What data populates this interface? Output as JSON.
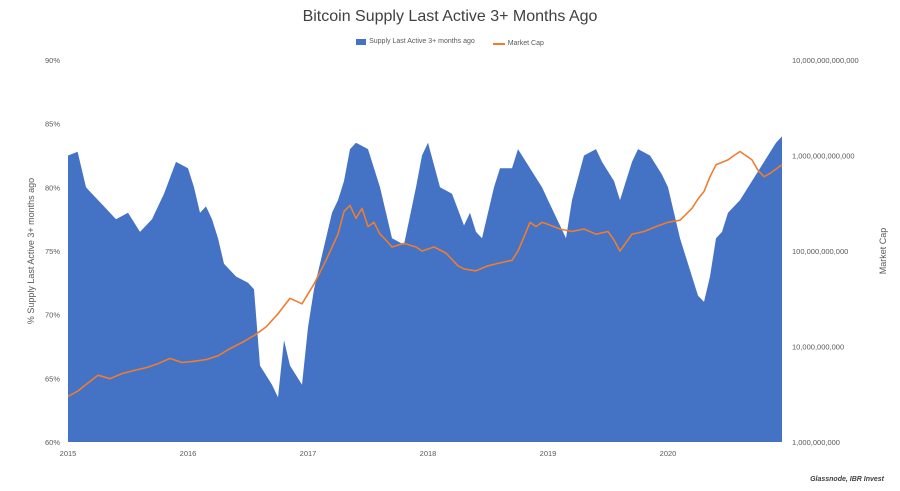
{
  "chart_data": {
    "type": "area",
    "title": "Bitcoin Supply Last Active 3+ Months Ago",
    "ylabel_left": "% Supply Last Active 3+ months ago",
    "ylabel_right": "Market Cap",
    "x_ticks": [
      "2015",
      "2016",
      "2017",
      "2018",
      "2019",
      "2020"
    ],
    "y_left_ticks": [
      "90%",
      "85%",
      "80%",
      "75%",
      "70%",
      "65%",
      "60%"
    ],
    "y_left_range": [
      60,
      90
    ],
    "y_right_ticks": [
      "10,000,000,000,000",
      "1,000,000,000,000",
      "100,000,000,000",
      "10,000,000,000",
      "1,000,000,000"
    ],
    "y_right_range": [
      1000000000,
      10000000000000
    ],
    "y_right_scale": "log",
    "x_range": [
      2015.0,
      2020.95
    ],
    "series": [
      {
        "name": "Supply Last Active 3+ months ago",
        "color": "#4472c4",
        "axis": "left",
        "x": [
          2015.0,
          2015.08,
          2015.15,
          2015.2,
          2015.3,
          2015.4,
          2015.5,
          2015.6,
          2015.7,
          2015.8,
          2015.9,
          2016.0,
          2016.05,
          2016.1,
          2016.15,
          2016.2,
          2016.25,
          2016.3,
          2016.4,
          2016.5,
          2016.55,
          2016.6,
          2016.7,
          2016.75,
          2016.8,
          2016.85,
          2016.95,
          2017.0,
          2017.05,
          2017.1,
          2017.15,
          2017.2,
          2017.25,
          2017.3,
          2017.35,
          2017.4,
          2017.5,
          2017.6,
          2017.7,
          2017.8,
          2017.9,
          2017.95,
          2018.0,
          2018.1,
          2018.2,
          2018.3,
          2018.35,
          2018.4,
          2018.45,
          2018.55,
          2018.6,
          2018.7,
          2018.75,
          2018.85,
          2018.95,
          2019.0,
          2019.1,
          2019.15,
          2019.2,
          2019.3,
          2019.4,
          2019.45,
          2019.55,
          2019.6,
          2019.7,
          2019.75,
          2019.85,
          2019.95,
          2020.0,
          2020.1,
          2020.2,
          2020.25,
          2020.3,
          2020.35,
          2020.4,
          2020.45,
          2020.5,
          2020.6,
          2020.7,
          2020.8,
          2020.9,
          2020.95
        ],
        "values": [
          82.5,
          82.8,
          80,
          79.5,
          78.5,
          77.5,
          78,
          76.5,
          77.5,
          79.5,
          82,
          81.5,
          80,
          78,
          78.5,
          77.5,
          76,
          74,
          73,
          72.5,
          72,
          66,
          64.5,
          63.5,
          68,
          66,
          64.5,
          69,
          72,
          74,
          76,
          78,
          79,
          80.5,
          83,
          83.5,
          83,
          80,
          76,
          75.5,
          80,
          82.5,
          83.5,
          80,
          79.5,
          77,
          78,
          76.5,
          76,
          80,
          81.5,
          81.5,
          83,
          81.5,
          80,
          79,
          77,
          76,
          79,
          82.5,
          83,
          82,
          80.5,
          79,
          82,
          83,
          82.5,
          81,
          80,
          76,
          73,
          71.5,
          71,
          73,
          76,
          76.5,
          78,
          79,
          80.5,
          82,
          83.5,
          84
        ]
      },
      {
        "name": "Market Cap",
        "color": "#ed7d31",
        "axis": "right",
        "x": [
          2015.0,
          2015.08,
          2015.15,
          2015.25,
          2015.35,
          2015.45,
          2015.55,
          2015.65,
          2015.75,
          2015.85,
          2015.95,
          2016.05,
          2016.15,
          2016.25,
          2016.35,
          2016.45,
          2016.55,
          2016.65,
          2016.75,
          2016.85,
          2016.95,
          2017.05,
          2017.15,
          2017.25,
          2017.3,
          2017.35,
          2017.4,
          2017.45,
          2017.5,
          2017.55,
          2017.6,
          2017.65,
          2017.7,
          2017.8,
          2017.9,
          2017.95,
          2018.05,
          2018.15,
          2018.25,
          2018.3,
          2018.4,
          2018.5,
          2018.6,
          2018.7,
          2018.75,
          2018.8,
          2018.85,
          2018.9,
          2018.95,
          2019.0,
          2019.1,
          2019.2,
          2019.3,
          2019.4,
          2019.5,
          2019.55,
          2019.6,
          2019.7,
          2019.8,
          2019.9,
          2020.0,
          2020.1,
          2020.2,
          2020.25,
          2020.3,
          2020.35,
          2020.4,
          2020.5,
          2020.55,
          2020.6,
          2020.7,
          2020.75,
          2020.8,
          2020.85,
          2020.95
        ],
        "values": [
          3000000000,
          3400000000,
          4000000000,
          5000000000,
          4600000000,
          5200000000,
          5600000000,
          6000000000,
          6600000000,
          7500000000,
          6800000000,
          7000000000,
          7300000000,
          8000000000,
          9500000000,
          11000000000,
          13000000000,
          16000000000,
          22000000000,
          32000000000,
          28000000000,
          45000000000,
          80000000000,
          150000000000,
          260000000000,
          300000000000,
          220000000000,
          280000000000,
          180000000000,
          200000000000,
          150000000000,
          130000000000,
          110000000000,
          120000000000,
          110000000000,
          100000000000,
          110000000000,
          95000000000,
          70000000000,
          65000000000,
          62000000000,
          70000000000,
          75000000000,
          80000000000,
          100000000000,
          140000000000,
          200000000000,
          180000000000,
          200000000000,
          190000000000,
          170000000000,
          160000000000,
          170000000000,
          150000000000,
          160000000000,
          130000000000,
          100000000000,
          150000000000,
          160000000000,
          180000000000,
          200000000000,
          210000000000,
          280000000000,
          350000000000,
          420000000000,
          600000000000,
          800000000000,
          900000000000,
          1000000000000,
          1100000000000,
          900000000000,
          700000000000,
          600000000000,
          650000000000,
          800000000000
        ]
      }
    ],
    "source": "Glassnode, IBR Invest"
  }
}
